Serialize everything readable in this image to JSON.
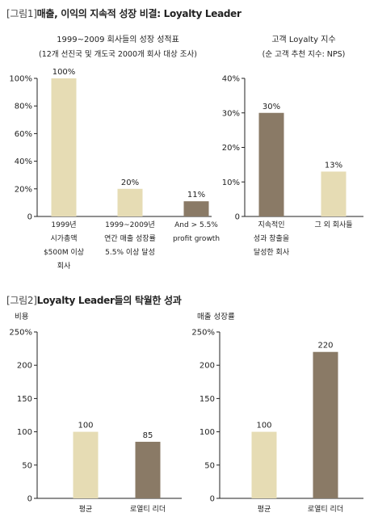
{
  "figure1": {
    "tag": "[그림1]",
    "title": "매출, 이익의 지속적 성장 비결: Loyalty Leader"
  },
  "figure2": {
    "tag": "[그림2]",
    "title": "Loyalty Leader들의 탁월한 성과"
  },
  "colors": {
    "beige": "#e6dcb4",
    "brown": "#8a7a66",
    "axis": "#222222"
  },
  "chart_data": [
    {
      "id": "c1",
      "type": "bar",
      "title": "1999~2009 회사들의 성장 성적표",
      "subtitle": "(12개 선진국 및 개도국 2000개 회사 대상 조사)",
      "ylabel": "",
      "ylim": [
        0,
        100
      ],
      "ticks": [
        0,
        20,
        40,
        60,
        80,
        100
      ],
      "tick_suffix": "%",
      "categories": [
        [
          "1999년",
          "시가총액",
          "$500M 이상",
          "회사"
        ],
        [
          "1999~2009년",
          "연간 매출 성장률",
          "5.5% 이상 달성"
        ],
        [
          "And > 5.5%",
          "profit growth"
        ]
      ],
      "values": [
        100,
        20,
        11
      ],
      "value_labels": [
        "100%",
        "20%",
        "11%"
      ],
      "bar_colors": [
        "#e6dcb4",
        "#e6dcb4",
        "#8a7a66"
      ]
    },
    {
      "id": "c2",
      "type": "bar",
      "title": "고객 Loyalty 지수",
      "subtitle": "(순 고객 추천 지수: NPS)",
      "ylabel": "",
      "ylim": [
        0,
        40
      ],
      "ticks": [
        0,
        10,
        20,
        30,
        40
      ],
      "tick_suffix": "%",
      "categories": [
        [
          "지속적인",
          "성과 창출을",
          "달성한 회사"
        ],
        [
          "그 외 회사들"
        ]
      ],
      "values": [
        30,
        13
      ],
      "value_labels": [
        "30%",
        "13%"
      ],
      "bar_colors": [
        "#8a7a66",
        "#e6dcb4"
      ]
    },
    {
      "id": "c3",
      "type": "bar",
      "title": "",
      "ylabel": "비용",
      "ylim": [
        0,
        250
      ],
      "ticks": [
        0,
        50,
        100,
        150,
        200,
        250
      ],
      "tick_suffix_last": "%",
      "categories": [
        [
          "평균"
        ],
        [
          "로열티 리더"
        ]
      ],
      "values": [
        100,
        85
      ],
      "value_labels": [
        "100",
        "85"
      ],
      "bar_colors": [
        "#e6dcb4",
        "#8a7a66"
      ]
    },
    {
      "id": "c4",
      "type": "bar",
      "title": "",
      "ylabel": "매출 성장률",
      "ylim": [
        0,
        250
      ],
      "ticks": [
        0,
        50,
        100,
        150,
        200,
        250
      ],
      "tick_suffix_last": "%",
      "categories": [
        [
          "평균"
        ],
        [
          "로열티 리더"
        ]
      ],
      "values": [
        100,
        220
      ],
      "value_labels": [
        "100",
        "220"
      ],
      "bar_colors": [
        "#e6dcb4",
        "#8a7a66"
      ]
    }
  ]
}
